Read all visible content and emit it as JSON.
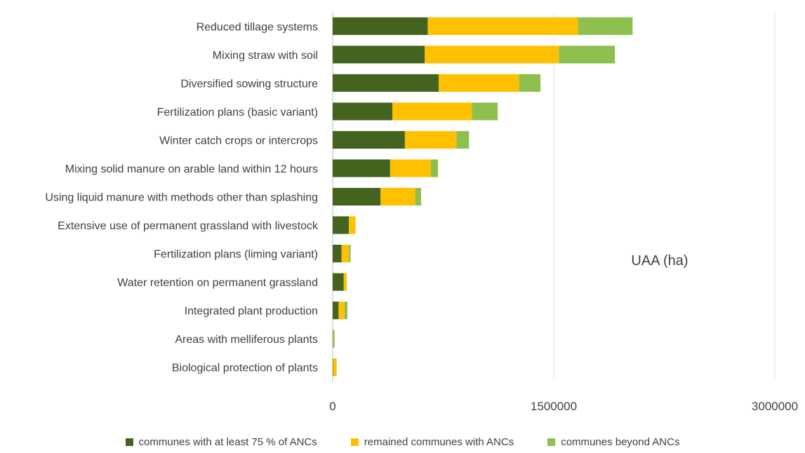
{
  "chart_data": {
    "type": "bar",
    "orientation": "horizontal",
    "stacked": true,
    "categories": [
      "Reduced tillage systems",
      "Mixing straw with soil",
      "Diversified sowing structure",
      "Fertilization plans (basic variant)",
      "Winter catch crops or intercrops",
      "Mixing solid manure on arable land within 12 hours",
      "Using liquid manure with methods other than splashing",
      "Extensive use of permanent grassland with livestock",
      "Fertilization plans (liming variant)",
      "Water retention on permanent grassland",
      "Integrated plant production",
      "Areas with melliferous plants",
      "Biological protection of plants"
    ],
    "series": [
      {
        "name": "communes with at least 75 % of ANCs",
        "color": "#44631e",
        "values": [
          645000,
          625000,
          720000,
          405000,
          490000,
          390000,
          325000,
          110000,
          60000,
          75000,
          40000,
          3000,
          3000
        ]
      },
      {
        "name": "remained communes  with ANCs",
        "color": "#ffc000",
        "values": [
          1020000,
          910000,
          545000,
          540000,
          350000,
          275000,
          235000,
          45000,
          50000,
          20000,
          40000,
          3000,
          22000
        ]
      },
      {
        "name": "communes beyond ANCs",
        "color": "#8fbf4f",
        "values": [
          370000,
          380000,
          145000,
          175000,
          85000,
          50000,
          40000,
          0,
          12000,
          0,
          20000,
          7000,
          2000
        ]
      }
    ],
    "xlim": [
      0,
      3000000
    ],
    "xticks": [
      "0",
      "1500000",
      "3000000"
    ],
    "unit_label": "UAA (ha)",
    "grid": "vertical",
    "legend_position": "bottom"
  }
}
